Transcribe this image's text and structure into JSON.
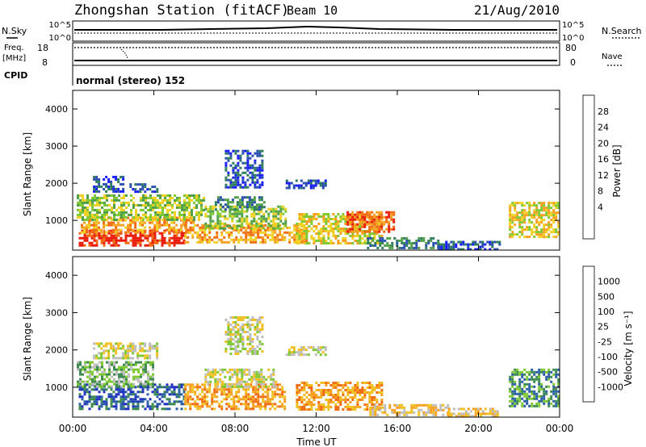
{
  "header": {
    "station": "Zhongshan Station (fitACF)",
    "beam": "Beam 10",
    "date": "21/Aug/2010"
  },
  "panels": {
    "nsky": {
      "left_label": "N.Sky",
      "right_label": "N.Search",
      "left_ticks": [
        "10^5",
        "10^0"
      ],
      "right_ticks": [
        "10^5",
        "10^0"
      ]
    },
    "freq": {
      "left_label_1": "Freq.",
      "left_label_2": "[MHz]",
      "right_label": "Nave",
      "left_ticks": [
        "18",
        "8"
      ],
      "right_ticks": [
        "80",
        "0"
      ]
    },
    "cpid": {
      "label": "CPID",
      "text": "normal (stereo) 152"
    }
  },
  "x_axis": {
    "label": "Time UT",
    "ticks": [
      "00:00",
      "04:00",
      "08:00",
      "12:00",
      "16:00",
      "20:00",
      "00:00"
    ]
  },
  "chart_data": [
    {
      "type": "heatmap",
      "name": "power",
      "ylabel": "Slant Range [km]",
      "ylim": [
        200,
        4500
      ],
      "yticks": [
        "4000",
        "3000",
        "2000",
        "1000"
      ],
      "xlim_hours": [
        0,
        24
      ],
      "colorbar": {
        "label": "Power [dB]",
        "labels": [
          "28",
          "24",
          "20",
          "16",
          "12",
          "8",
          "4"
        ],
        "colors": [
          "#1a1aff",
          "#2a4fb0",
          "#2e7d5a",
          "#4f9e48",
          "#7ec832",
          "#f0d020",
          "#f7a020",
          "#f06a10",
          "#e81a08"
        ]
      },
      "regions": [
        {
          "t0": 0.3,
          "t1": 5.5,
          "r0": 350,
          "r1": 750,
          "level": 8
        },
        {
          "t0": 0.4,
          "t1": 6.0,
          "r0": 700,
          "r1": 1100,
          "level": 6
        },
        {
          "t0": 0.2,
          "t1": 6.5,
          "r0": 1000,
          "r1": 1700,
          "level": 4
        },
        {
          "t0": 5.5,
          "t1": 11.5,
          "r0": 400,
          "r1": 900,
          "level": 6
        },
        {
          "t0": 6.5,
          "t1": 10.5,
          "r0": 800,
          "r1": 1400,
          "level": 4
        },
        {
          "t0": 7.0,
          "t1": 9.5,
          "r0": 1300,
          "r1": 1650,
          "level": 2
        },
        {
          "t0": 11.0,
          "t1": 15.2,
          "r0": 400,
          "r1": 1200,
          "level": 5
        },
        {
          "t0": 13.5,
          "t1": 15.8,
          "r0": 700,
          "r1": 1250,
          "level": 7
        },
        {
          "t0": 14.5,
          "t1": 18.0,
          "r0": 250,
          "r1": 550,
          "level": 2
        },
        {
          "t0": 18.0,
          "t1": 21.0,
          "r0": 250,
          "r1": 450,
          "level": 1
        },
        {
          "t0": 21.5,
          "t1": 24.0,
          "r0": 550,
          "r1": 1500,
          "level": 5
        },
        {
          "t0": 1.0,
          "t1": 2.5,
          "r0": 1750,
          "r1": 2200,
          "level": 1
        },
        {
          "t0": 2.8,
          "t1": 4.2,
          "r0": 1800,
          "r1": 2000,
          "level": 1
        },
        {
          "t0": 7.5,
          "t1": 9.3,
          "r0": 1900,
          "r1": 2900,
          "level": 1
        },
        {
          "t0": 10.5,
          "t1": 12.5,
          "r0": 1850,
          "r1": 2100,
          "level": 1
        }
      ]
    },
    {
      "type": "heatmap",
      "name": "velocity",
      "ylabel": "Slant Range [km]",
      "ylim": [
        200,
        4500
      ],
      "yticks": [
        "4000",
        "3000",
        "2000",
        "1000"
      ],
      "xlim_hours": [
        0,
        24
      ],
      "colorbar": {
        "label": "Velocity [m s⁻¹]",
        "labels": [
          "1000",
          "500",
          "100",
          "25",
          "-25",
          "-100",
          "-500",
          "-1000"
        ],
        "colors": [
          "#e81a08",
          "#f06a10",
          "#f7a020",
          "#f0c020",
          "#bebebe",
          "#7ec832",
          "#3c8a50",
          "#2a5fa8",
          "#2030c0"
        ]
      },
      "regions": [
        {
          "t0": 0.3,
          "t1": 5.5,
          "r0": 400,
          "r1": 1100,
          "level": 7
        },
        {
          "t0": 0.2,
          "t1": 4.0,
          "r0": 1000,
          "r1": 1700,
          "level": 5
        },
        {
          "t0": 5.5,
          "t1": 10.5,
          "r0": 400,
          "r1": 1100,
          "level": 2
        },
        {
          "t0": 6.5,
          "t1": 10.0,
          "r0": 1000,
          "r1": 1500,
          "level": 4
        },
        {
          "t0": 11.0,
          "t1": 15.2,
          "r0": 400,
          "r1": 1150,
          "level": 2
        },
        {
          "t0": 14.5,
          "t1": 18.5,
          "r0": 250,
          "r1": 550,
          "level": 3
        },
        {
          "t0": 18.5,
          "t1": 21.0,
          "r0": 250,
          "r1": 450,
          "level": 3
        },
        {
          "t0": 21.5,
          "t1": 24.0,
          "r0": 500,
          "r1": 1500,
          "level": 6
        },
        {
          "t0": 1.0,
          "t1": 4.2,
          "r0": 1750,
          "r1": 2200,
          "level": 4
        },
        {
          "t0": 7.5,
          "t1": 9.3,
          "r0": 1900,
          "r1": 2900,
          "level": 4
        },
        {
          "t0": 10.5,
          "t1": 12.5,
          "r0": 1850,
          "r1": 2100,
          "level": 4
        }
      ]
    }
  ]
}
